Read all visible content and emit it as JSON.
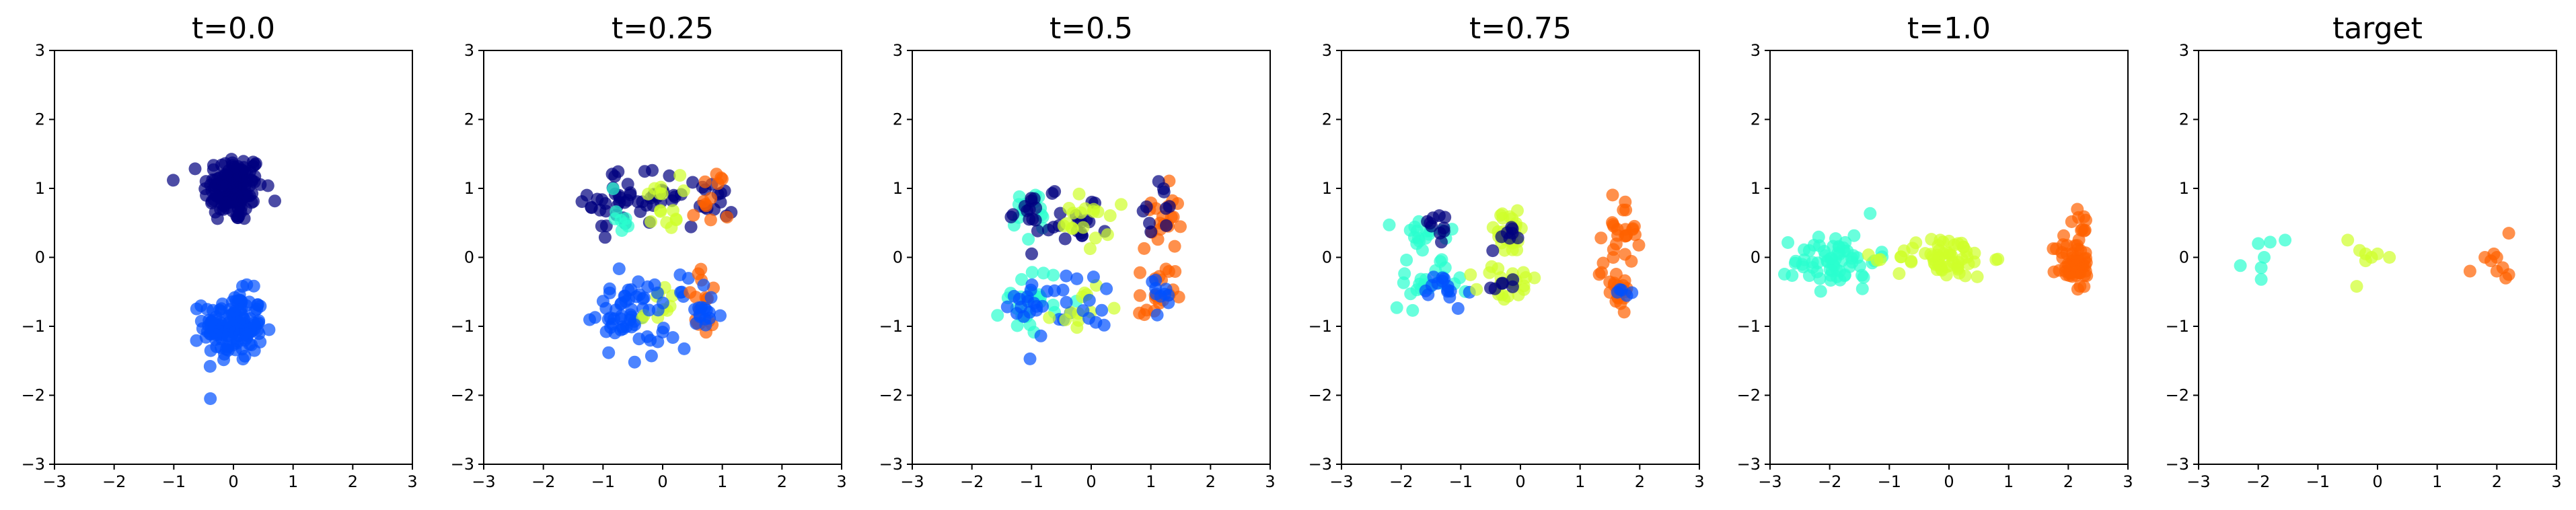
{
  "figure": {
    "axis_range": [
      -3,
      3
    ],
    "ticks": [
      -3,
      -2,
      -1,
      0,
      1,
      2,
      3
    ],
    "colors": {
      "navy": "#00007f",
      "blue": "#0050ff",
      "cyan": "#29ffce",
      "lime": "#ceff29",
      "orange": "#ff6100"
    },
    "marker_alpha": 0.7
  },
  "chart_data": [
    {
      "type": "scatter",
      "title": "t=0.0",
      "xlim": [
        -3,
        3
      ],
      "ylim": [
        -3,
        3
      ],
      "grid": false,
      "clusters": [
        {
          "color": "navy",
          "cx": 0.0,
          "cy": 1.0,
          "sx": 0.25,
          "sy": 0.25,
          "n": 140
        },
        {
          "color": "blue",
          "cx": 0.0,
          "cy": -1.0,
          "sx": 0.25,
          "sy": 0.25,
          "n": 140
        }
      ]
    },
    {
      "type": "scatter",
      "title": "t=0.25",
      "xlim": [
        -3,
        3
      ],
      "ylim": [
        -3,
        3
      ],
      "grid": false,
      "clusters": [
        {
          "color": "navy",
          "cx": -0.8,
          "cy": 0.8,
          "sx": 0.22,
          "sy": 0.22,
          "n": 30
        },
        {
          "color": "cyan",
          "cx": -0.7,
          "cy": 0.7,
          "sx": 0.15,
          "sy": 0.2,
          "n": 8
        },
        {
          "color": "navy",
          "cx": 0.0,
          "cy": 0.9,
          "sx": 0.2,
          "sy": 0.2,
          "n": 20
        },
        {
          "color": "lime",
          "cx": 0.0,
          "cy": 0.8,
          "sx": 0.15,
          "sy": 0.2,
          "n": 15
        },
        {
          "color": "navy",
          "cx": 0.8,
          "cy": 0.8,
          "sx": 0.2,
          "sy": 0.2,
          "n": 15
        },
        {
          "color": "orange",
          "cx": 0.8,
          "cy": 0.8,
          "sx": 0.15,
          "sy": 0.25,
          "n": 12
        },
        {
          "color": "blue",
          "cx": -0.7,
          "cy": -0.8,
          "sx": 0.25,
          "sy": 0.25,
          "n": 45
        },
        {
          "color": "lime",
          "cx": 0.0,
          "cy": -0.8,
          "sx": 0.15,
          "sy": 0.2,
          "n": 10
        },
        {
          "color": "blue",
          "cx": 0.0,
          "cy": -0.8,
          "sx": 0.2,
          "sy": 0.25,
          "n": 20
        },
        {
          "color": "orange",
          "cx": 0.7,
          "cy": -0.7,
          "sx": 0.15,
          "sy": 0.25,
          "n": 18
        },
        {
          "color": "blue",
          "cx": 0.7,
          "cy": -0.8,
          "sx": 0.15,
          "sy": 0.2,
          "n": 15
        }
      ]
    },
    {
      "type": "scatter",
      "title": "t=0.5",
      "xlim": [
        -3,
        3
      ],
      "ylim": [
        -3,
        3
      ],
      "grid": false,
      "clusters": [
        {
          "color": "cyan",
          "cx": -1.0,
          "cy": 0.6,
          "sx": 0.2,
          "sy": 0.2,
          "n": 15
        },
        {
          "color": "navy",
          "cx": -1.0,
          "cy": 0.6,
          "sx": 0.25,
          "sy": 0.2,
          "n": 15
        },
        {
          "color": "navy",
          "cx": -0.2,
          "cy": 0.6,
          "sx": 0.25,
          "sy": 0.2,
          "n": 18
        },
        {
          "color": "lime",
          "cx": -0.1,
          "cy": 0.5,
          "sx": 0.2,
          "sy": 0.2,
          "n": 18
        },
        {
          "color": "orange",
          "cx": 1.2,
          "cy": 0.6,
          "sx": 0.15,
          "sy": 0.25,
          "n": 20
        },
        {
          "color": "navy",
          "cx": 1.1,
          "cy": 0.7,
          "sx": 0.15,
          "sy": 0.2,
          "n": 10
        },
        {
          "color": "cyan",
          "cx": -1.0,
          "cy": -0.6,
          "sx": 0.25,
          "sy": 0.25,
          "n": 25
        },
        {
          "color": "blue",
          "cx": -0.9,
          "cy": -0.7,
          "sx": 0.25,
          "sy": 0.2,
          "n": 22
        },
        {
          "color": "lime",
          "cx": -0.2,
          "cy": -0.7,
          "sx": 0.2,
          "sy": 0.2,
          "n": 12
        },
        {
          "color": "blue",
          "cx": 0.0,
          "cy": -0.6,
          "sx": 0.2,
          "sy": 0.2,
          "n": 12
        },
        {
          "color": "orange",
          "cx": 1.1,
          "cy": -0.6,
          "sx": 0.15,
          "sy": 0.25,
          "n": 20
        },
        {
          "color": "blue",
          "cx": 1.1,
          "cy": -0.6,
          "sx": 0.15,
          "sy": 0.2,
          "n": 10
        }
      ]
    },
    {
      "type": "scatter",
      "title": "t=0.75",
      "xlim": [
        -3,
        3
      ],
      "ylim": [
        -3,
        3
      ],
      "grid": false,
      "clusters": [
        {
          "color": "cyan",
          "cx": -1.6,
          "cy": 0.3,
          "sx": 0.25,
          "sy": 0.15,
          "n": 18
        },
        {
          "color": "navy",
          "cx": -1.4,
          "cy": 0.45,
          "sx": 0.15,
          "sy": 0.15,
          "n": 10
        },
        {
          "color": "lime",
          "cx": -0.2,
          "cy": 0.35,
          "sx": 0.2,
          "sy": 0.15,
          "n": 25
        },
        {
          "color": "navy",
          "cx": -0.2,
          "cy": 0.35,
          "sx": 0.15,
          "sy": 0.12,
          "n": 8
        },
        {
          "color": "orange",
          "cx": 1.7,
          "cy": 0.4,
          "sx": 0.15,
          "sy": 0.25,
          "n": 25
        },
        {
          "color": "cyan",
          "cx": -1.6,
          "cy": -0.4,
          "sx": 0.3,
          "sy": 0.15,
          "n": 22
        },
        {
          "color": "blue",
          "cx": -1.3,
          "cy": -0.5,
          "sx": 0.2,
          "sy": 0.15,
          "n": 15
        },
        {
          "color": "lime",
          "cx": -0.2,
          "cy": -0.4,
          "sx": 0.25,
          "sy": 0.15,
          "n": 22
        },
        {
          "color": "navy",
          "cx": -0.3,
          "cy": -0.4,
          "sx": 0.2,
          "sy": 0.12,
          "n": 6
        },
        {
          "color": "orange",
          "cx": 1.6,
          "cy": -0.4,
          "sx": 0.15,
          "sy": 0.15,
          "n": 22
        },
        {
          "color": "blue",
          "cx": 1.7,
          "cy": -0.5,
          "sx": 0.1,
          "sy": 0.1,
          "n": 5
        }
      ]
    },
    {
      "type": "scatter",
      "title": "t=1.0",
      "xlim": [
        -3,
        3
      ],
      "ylim": [
        -3,
        3
      ],
      "grid": false,
      "clusters": [
        {
          "color": "cyan",
          "cx": -1.9,
          "cy": -0.05,
          "sx": 0.35,
          "sy": 0.2,
          "n": 65
        },
        {
          "color": "lime",
          "cx": -0.1,
          "cy": 0.0,
          "sx": 0.4,
          "sy": 0.15,
          "n": 60
        },
        {
          "color": "orange",
          "cx": 2.1,
          "cy": -0.1,
          "sx": 0.15,
          "sy": 0.2,
          "n": 50
        },
        {
          "color": "orange",
          "cx": 2.2,
          "cy": 0.4,
          "sx": 0.1,
          "sy": 0.15,
          "n": 10
        }
      ]
    },
    {
      "type": "scatter",
      "title": "target",
      "xlim": [
        -3,
        3
      ],
      "ylim": [
        -3,
        3
      ],
      "grid": false,
      "points": [
        {
          "color": "cyan",
          "x": -2.3,
          "y": -0.12
        },
        {
          "color": "cyan",
          "x": -2.0,
          "y": 0.2
        },
        {
          "color": "cyan",
          "x": -1.9,
          "y": 0.0
        },
        {
          "color": "cyan",
          "x": -1.95,
          "y": -0.15
        },
        {
          "color": "cyan",
          "x": -1.8,
          "y": 0.22
        },
        {
          "color": "cyan",
          "x": -1.55,
          "y": 0.25
        },
        {
          "color": "cyan",
          "x": -1.95,
          "y": -0.32
        },
        {
          "color": "lime",
          "x": -0.5,
          "y": 0.25
        },
        {
          "color": "lime",
          "x": -0.3,
          "y": 0.1
        },
        {
          "color": "lime",
          "x": -0.2,
          "y": -0.05
        },
        {
          "color": "lime",
          "x": -0.1,
          "y": 0.0
        },
        {
          "color": "lime",
          "x": 0.0,
          "y": 0.05
        },
        {
          "color": "lime",
          "x": -0.2,
          "y": 0.05
        },
        {
          "color": "lime",
          "x": 0.2,
          "y": 0.0
        },
        {
          "color": "lime",
          "x": -0.35,
          "y": -0.42
        },
        {
          "color": "orange",
          "x": 1.55,
          "y": -0.2
        },
        {
          "color": "orange",
          "x": 1.8,
          "y": 0.0
        },
        {
          "color": "orange",
          "x": 1.9,
          "y": -0.05
        },
        {
          "color": "orange",
          "x": 2.0,
          "y": 0.0
        },
        {
          "color": "orange",
          "x": 2.0,
          "y": -0.2
        },
        {
          "color": "orange",
          "x": 2.1,
          "y": -0.15
        },
        {
          "color": "orange",
          "x": 2.15,
          "y": -0.3
        },
        {
          "color": "orange",
          "x": 2.2,
          "y": -0.25
        },
        {
          "color": "orange",
          "x": 2.2,
          "y": 0.35
        },
        {
          "color": "orange",
          "x": 1.95,
          "y": 0.05
        }
      ]
    }
  ]
}
